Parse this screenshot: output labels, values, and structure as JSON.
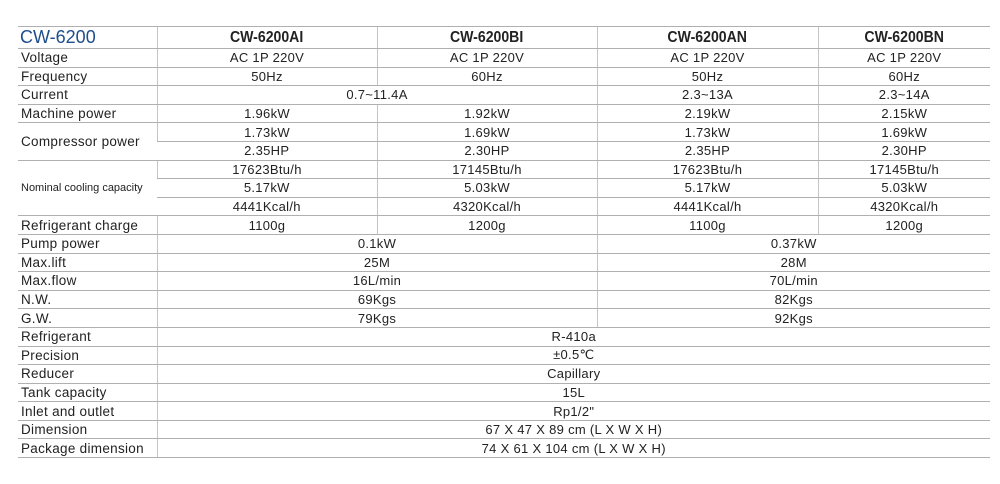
{
  "header": {
    "series": "CW-6200",
    "models": [
      "CW-6200AI",
      "CW-6200BI",
      "CW-6200AN",
      "CW-6200BN"
    ],
    "series_color": "#1f4e8c"
  },
  "rows": [
    {
      "label": "Voltage",
      "lines": [
        [
          {
            "v": "AC 1P 220V",
            "n": 1
          },
          {
            "v": "AC 1P 220V",
            "n": 1
          },
          {
            "v": "AC 1P 220V",
            "n": 1
          },
          {
            "v": "AC 1P 220V",
            "n": 1
          }
        ]
      ]
    },
    {
      "label": "Frequency",
      "lines": [
        [
          {
            "v": "50Hz",
            "n": 1
          },
          {
            "v": "60Hz",
            "n": 1
          },
          {
            "v": "50Hz",
            "n": 1
          },
          {
            "v": "60Hz",
            "n": 1
          }
        ]
      ]
    },
    {
      "label": "Current",
      "lines": [
        [
          {
            "v": "0.7~11.4A",
            "n": 2
          },
          {
            "v": "2.3~13A",
            "n": 1
          },
          {
            "v": "2.3~14A",
            "n": 1
          }
        ]
      ]
    },
    {
      "label": "Machine power",
      "lines": [
        [
          {
            "v": "1.96kW",
            "n": 1
          },
          {
            "v": "1.92kW",
            "n": 1
          },
          {
            "v": "2.19kW",
            "n": 1
          },
          {
            "v": "2.15kW",
            "n": 1
          }
        ]
      ]
    },
    {
      "label": "Compressor power",
      "lines": [
        [
          {
            "v": "1.73kW",
            "n": 1
          },
          {
            "v": "1.69kW",
            "n": 1
          },
          {
            "v": "1.73kW",
            "n": 1
          },
          {
            "v": "1.69kW",
            "n": 1
          }
        ],
        [
          {
            "v": "2.35HP",
            "n": 1
          },
          {
            "v": "2.30HP",
            "n": 1
          },
          {
            "v": "2.35HP",
            "n": 1
          },
          {
            "v": "2.30HP",
            "n": 1
          }
        ]
      ]
    },
    {
      "label": "Nominal cooling capacity",
      "small": true,
      "lines": [
        [
          {
            "v": "17623Btu/h",
            "n": 1
          },
          {
            "v": "17145Btu/h",
            "n": 1
          },
          {
            "v": "17623Btu/h",
            "n": 1
          },
          {
            "v": "17145Btu/h",
            "n": 1
          }
        ],
        [
          {
            "v": "5.17kW",
            "n": 1
          },
          {
            "v": "5.03kW",
            "n": 1
          },
          {
            "v": "5.17kW",
            "n": 1
          },
          {
            "v": "5.03kW",
            "n": 1
          }
        ],
        [
          {
            "v": "4441Kcal/h",
            "n": 1
          },
          {
            "v": "4320Kcal/h",
            "n": 1
          },
          {
            "v": "4441Kcal/h",
            "n": 1
          },
          {
            "v": "4320Kcal/h",
            "n": 1
          }
        ]
      ]
    },
    {
      "label": "Refrigerant charge",
      "lines": [
        [
          {
            "v": "1100g",
            "n": 1
          },
          {
            "v": "1200g",
            "n": 1
          },
          {
            "v": "1100g",
            "n": 1
          },
          {
            "v": "1200g",
            "n": 1
          }
        ]
      ]
    },
    {
      "label": "Pump power",
      "lines": [
        [
          {
            "v": "0.1kW",
            "n": 2
          },
          {
            "v": "0.37kW",
            "n": 2
          }
        ]
      ]
    },
    {
      "label": "Max.lift",
      "lines": [
        [
          {
            "v": "25M",
            "n": 2
          },
          {
            "v": "28M",
            "n": 2
          }
        ]
      ]
    },
    {
      "label": "Max.flow",
      "lines": [
        [
          {
            "v": "16L/min",
            "n": 2
          },
          {
            "v": "70L/min",
            "n": 2
          }
        ]
      ]
    },
    {
      "label": "N.W.",
      "lines": [
        [
          {
            "v": "69Kgs",
            "n": 2
          },
          {
            "v": "82Kgs",
            "n": 2
          }
        ]
      ]
    },
    {
      "label": "G.W.",
      "lines": [
        [
          {
            "v": "79Kgs",
            "n": 2
          },
          {
            "v": "92Kgs",
            "n": 2
          }
        ]
      ]
    },
    {
      "label": "Refrigerant",
      "lines": [
        [
          {
            "v": "R-410a",
            "n": 4
          }
        ]
      ]
    },
    {
      "label": "Precision",
      "lines": [
        [
          {
            "v": "±0.5℃",
            "n": 4
          }
        ]
      ]
    },
    {
      "label": "Reducer",
      "lines": [
        [
          {
            "v": "Capillary",
            "n": 4
          }
        ]
      ]
    },
    {
      "label": "Tank capacity",
      "lines": [
        [
          {
            "v": "15L",
            "n": 4
          }
        ]
      ]
    },
    {
      "label": "Inlet and outlet",
      "lines": [
        [
          {
            "v": "Rp1/2\"",
            "n": 4
          }
        ]
      ]
    },
    {
      "label": "Dimension",
      "lines": [
        [
          {
            "v": "67 X 47 X 89 cm (L X W X H)",
            "n": 4
          }
        ]
      ]
    },
    {
      "label": "Package dimension",
      "lines": [
        [
          {
            "v": "74 X 61 X 104 cm (L X W X H)",
            "n": 4
          }
        ]
      ]
    }
  ]
}
